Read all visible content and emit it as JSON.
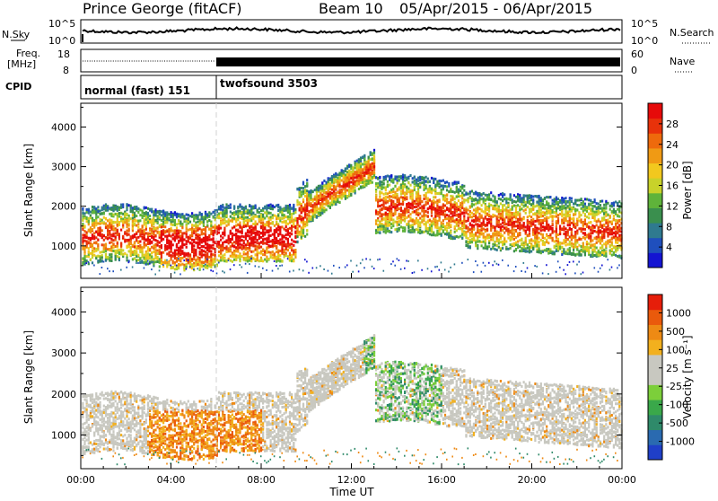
{
  "header": {
    "title": "Prince George (fitACF)",
    "beam": "Beam 10",
    "daterange": "05/Apr/2015 - 06/Apr/2015"
  },
  "noise_panel": {
    "left_label": "N.Sky",
    "right_label": "N.Search",
    "top_tick": "10^5",
    "bottom_tick": "10^0"
  },
  "freq_panel": {
    "left_label_1": "Freq.",
    "left_label_2": "[MHz]",
    "left_top_tick": "18",
    "left_bottom_tick": "8",
    "right_label": "Nave",
    "right_top_tick": "60",
    "right_bottom_tick": "0"
  },
  "cpid": {
    "label": "CPID",
    "modes": [
      {
        "name": "normal (fast) 151",
        "start_hour": 0
      },
      {
        "name": "twofsound 3503",
        "start_hour": 6
      }
    ]
  },
  "chart_data": [
    {
      "type": "heatmap",
      "id": "power",
      "ylabel": "Slant Range [km]",
      "xlabel": "",
      "x_range_hours": [
        0,
        24
      ],
      "ylim": [
        180,
        4600
      ],
      "yticks": [
        1000,
        2000,
        3000,
        4000
      ],
      "colorbar": {
        "label": "Power [dB]",
        "ticks": [
          "28",
          "24",
          "20",
          "16",
          "12",
          "8",
          "4"
        ],
        "colors": [
          "#1414d2",
          "#1f4fbd",
          "#2f7a8f",
          "#3a8f4e",
          "#5fb33a",
          "#c8d22a",
          "#f2c81e",
          "#f09a14",
          "#ee6a0c",
          "#e8320a",
          "#e60a0a"
        ]
      }
    },
    {
      "type": "heatmap",
      "id": "velocity",
      "ylabel": "Slant Range [km]",
      "xlabel": "Time UT",
      "x_range_hours": [
        0,
        24
      ],
      "ylim": [
        180,
        4600
      ],
      "yticks": [
        1000,
        2000,
        3000,
        4000
      ],
      "xticks": [
        "00:00",
        "04:00",
        "08:00",
        "12:00",
        "16:00",
        "20:00",
        "00:00"
      ],
      "colorbar": {
        "label": "Velocity [m s⁻¹]",
        "ticks": [
          "1000",
          "500",
          "100",
          "25",
          "-25",
          "-100",
          "-500",
          "-1000"
        ],
        "colors": [
          "#1f3fc8",
          "#2a6ab0",
          "#2f8a6a",
          "#3aa84a",
          "#7ccf3a",
          "#c8c8c0",
          "#c8c8c0",
          "#f2b01e",
          "#ee8a14",
          "#ea5a0c",
          "#e61e0a"
        ]
      }
    }
  ]
}
